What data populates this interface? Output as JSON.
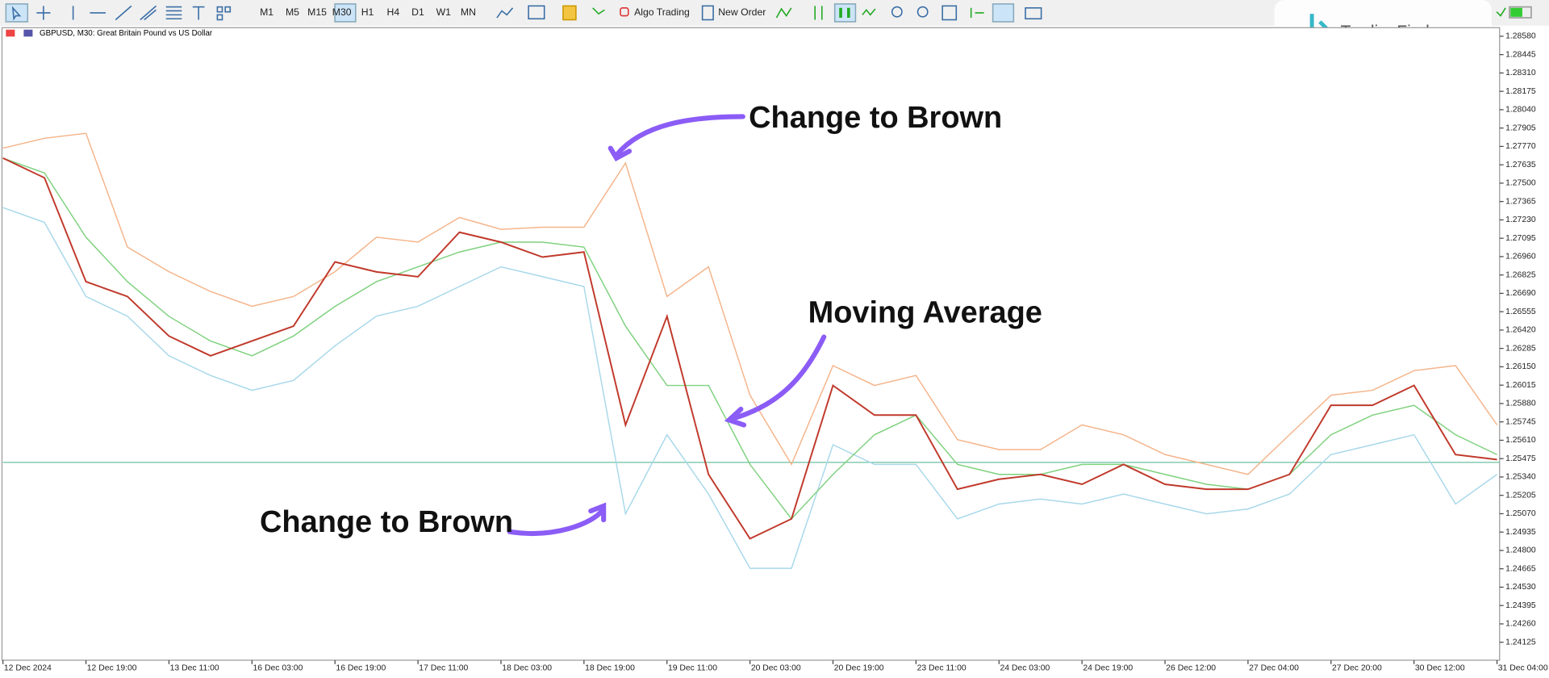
{
  "toolbar": {
    "timeframes": [
      "M1",
      "M5",
      "M15",
      "M30",
      "H1",
      "H4",
      "D1",
      "W1",
      "MN"
    ],
    "active": "M30",
    "algo_trading": "Algo Trading",
    "new_order": "New Order"
  },
  "logo": "TradingFinder",
  "chart_data": {
    "type": "line",
    "title": "GBPUSD, M30:  Great Britain Pound vs US Dollar",
    "x": [
      0,
      16,
      32,
      48,
      64,
      80,
      96,
      112,
      128,
      144,
      160,
      176,
      192,
      208,
      224,
      240,
      256,
      272,
      288,
      304,
      320,
      336,
      352,
      368,
      384,
      400,
      416,
      432,
      448,
      464,
      480,
      496,
      512,
      528,
      544,
      560,
      576
    ],
    "xlim": [
      0,
      577
    ],
    "xticks": [
      {
        "value": 0,
        "label": "12 Dec 2024"
      },
      {
        "value": 32,
        "label": "12 Dec 19:00"
      },
      {
        "value": 64,
        "label": "13 Dec 11:00"
      },
      {
        "value": 96,
        "label": "16 Dec 03:00"
      },
      {
        "value": 128,
        "label": "16 Dec 19:00"
      },
      {
        "value": 160,
        "label": "17 Dec 11:00"
      },
      {
        "value": 192,
        "label": "18 Dec 03:00"
      },
      {
        "value": 224,
        "label": "18 Dec 19:00"
      },
      {
        "value": 256,
        "label": "19 Dec 11:00"
      },
      {
        "value": 288,
        "label": "20 Dec 03:00"
      },
      {
        "value": 320,
        "label": "20 Dec 19:00"
      },
      {
        "value": 352,
        "label": "23 Dec 11:00"
      },
      {
        "value": 384,
        "label": "24 Dec 03:00"
      },
      {
        "value": 416,
        "label": "24 Dec 19:00"
      },
      {
        "value": 448,
        "label": "26 Dec 12:00"
      },
      {
        "value": 480,
        "label": "27 Dec 04:00"
      },
      {
        "value": 512,
        "label": "27 Dec 20:00"
      },
      {
        "value": 544,
        "label": "30 Dec 12:00"
      },
      {
        "value": 576,
        "label": "31 Dec 04:00"
      }
    ],
    "ylim": [
      1.23993,
      1.28643
    ],
    "yticks": [
      {
        "value": 1.24125,
        "label": "1.24125"
      },
      {
        "value": 1.2426,
        "label": "1.24260"
      },
      {
        "value": 1.24395,
        "label": "1.24395"
      },
      {
        "value": 1.2453,
        "label": "1.24530"
      },
      {
        "value": 1.24665,
        "label": "1.24665"
      },
      {
        "value": 1.248,
        "label": "1.24800"
      },
      {
        "value": 1.24935,
        "label": "1.24935"
      },
      {
        "value": 1.2507,
        "label": "1.25070"
      },
      {
        "value": 1.25205,
        "label": "1.25205"
      },
      {
        "value": 1.2534,
        "label": "1.25340"
      },
      {
        "value": 1.25475,
        "label": "1.25475"
      },
      {
        "value": 1.2561,
        "label": "1.25610"
      },
      {
        "value": 1.25745,
        "label": "1.25745"
      },
      {
        "value": 1.2588,
        "label": "1.25880"
      },
      {
        "value": 1.26015,
        "label": "1.26015"
      },
      {
        "value": 1.2615,
        "label": "1.26150"
      },
      {
        "value": 1.26285,
        "label": "1.26285"
      },
      {
        "value": 1.2642,
        "label": "1.26420"
      },
      {
        "value": 1.26555,
        "label": "1.26555"
      },
      {
        "value": 1.2669,
        "label": "1.26690"
      },
      {
        "value": 1.26825,
        "label": "1.26825"
      },
      {
        "value": 1.2696,
        "label": "1.26960"
      },
      {
        "value": 1.27095,
        "label": "1.27095"
      },
      {
        "value": 1.2723,
        "label": "1.27230"
      },
      {
        "value": 1.27365,
        "label": "1.27365"
      },
      {
        "value": 1.275,
        "label": "1.27500"
      },
      {
        "value": 1.27635,
        "label": "1.27635"
      },
      {
        "value": 1.2777,
        "label": "1.27770"
      },
      {
        "value": 1.27905,
        "label": "1.27905"
      },
      {
        "value": 1.2804,
        "label": "1.28040"
      },
      {
        "value": 1.28175,
        "label": "1.28175"
      },
      {
        "value": 1.2831,
        "label": "1.28310"
      },
      {
        "value": 1.28445,
        "label": "1.28445"
      },
      {
        "value": 1.2858,
        "label": "1.28580"
      }
    ],
    "series": [
      {
        "color": "#f5b48a",
        "values": [
          1.27757,
          1.2783,
          1.27866,
          1.2703,
          1.26849,
          1.26704,
          1.26595,
          1.26667,
          1.26849,
          1.27103,
          1.27067,
          1.27248,
          1.27161,
          1.27176,
          1.27176,
          1.27648,
          1.26667,
          1.26885,
          1.25941,
          1.25432,
          1.26159,
          1.26013,
          1.26086,
          1.25614,
          1.25541,
          1.25541,
          1.25723,
          1.2565,
          1.25505,
          1.25432,
          1.25359,
          1.2565,
          1.25941,
          1.25977,
          1.26122,
          1.26159,
          1.25723
        ]
      },
      {
        "color": "#a8d8ea",
        "values": [
          1.27321,
          1.27212,
          1.26667,
          1.26522,
          1.26231,
          1.26086,
          1.25977,
          1.2605,
          1.26304,
          1.26522,
          1.26595,
          1.2674,
          1.26885,
          1.26813,
          1.2674,
          1.25069,
          1.2565,
          1.25214,
          1.24669,
          1.24669,
          1.25577,
          1.25432,
          1.25432,
          1.25032,
          1.25141,
          1.25178,
          1.25141,
          1.25214,
          1.25141,
          1.25069,
          1.25105,
          1.25214,
          1.25505,
          1.25577,
          1.2565,
          1.25141,
          1.25359
        ]
      },
      {
        "color": "#7fd17f",
        "values": [
          1.27684,
          1.27575,
          1.27103,
          1.26776,
          1.26521,
          1.2634,
          1.26231,
          1.26376,
          1.26594,
          1.26776,
          1.26885,
          1.26994,
          1.27066,
          1.27066,
          1.2703,
          1.26449,
          1.26013,
          1.26013,
          1.25432,
          1.25032,
          1.25359,
          1.2565,
          1.25795,
          1.25432,
          1.25359,
          1.25359,
          1.25432,
          1.25432,
          1.25359,
          1.25286,
          1.2525,
          1.25359,
          1.2565,
          1.25795,
          1.25867,
          1.2565,
          1.25504
        ]
      },
      {
        "color": "#c0392b",
        "values": [
          1.27684,
          1.27539,
          1.26776,
          1.26667,
          1.26376,
          1.26231,
          1.2634,
          1.26449,
          1.26921,
          1.26848,
          1.26812,
          1.27139,
          1.27066,
          1.26957,
          1.26994,
          1.25722,
          1.26521,
          1.25359,
          1.24887,
          1.25032,
          1.26013,
          1.25795,
          1.25795,
          1.2525,
          1.25323,
          1.25359,
          1.25286,
          1.25432,
          1.25286,
          1.2525,
          1.2525,
          1.25359,
          1.25867,
          1.25867,
          1.26013,
          1.25504,
          1.25468
        ]
      }
    ],
    "price_line": 1.25447,
    "annotations": [
      "Change to Brown",
      "Moving Average",
      "Change to Brown"
    ]
  }
}
